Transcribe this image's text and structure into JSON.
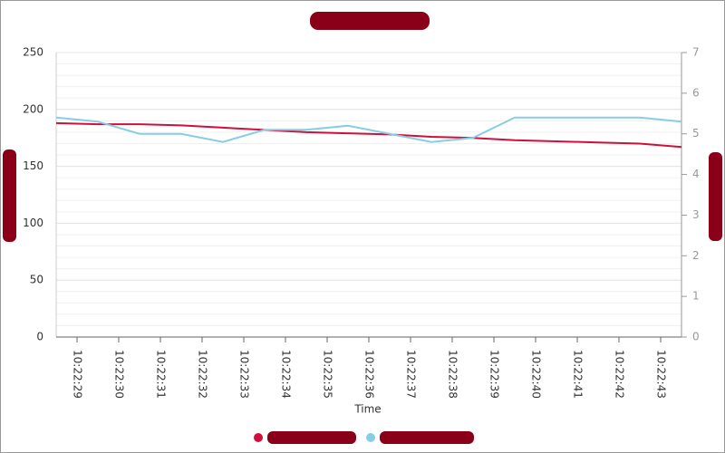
{
  "chart_data": {
    "type": "line",
    "x_label": "Time",
    "xticks": [
      "10:22:29",
      "10:22:30",
      "10:22:31",
      "10:22:32",
      "10:22:33",
      "10:22:34",
      "10:22:35",
      "10:22:36",
      "10:22:37",
      "10:22:38",
      "10:22:39",
      "10:22:40",
      "10:22:41",
      "10:22:42",
      "10:22:43"
    ],
    "ylim": [
      0,
      250
    ],
    "yticks": [
      0,
      50,
      100,
      150,
      200,
      250
    ],
    "y2lim": [
      0,
      7
    ],
    "y2ticks": [
      0,
      1,
      2,
      3,
      4,
      5,
      6,
      7
    ],
    "grid": true,
    "series": [
      {
        "color": "#d0103a",
        "values": [
          188,
          187,
          187,
          186,
          184,
          182,
          180,
          179,
          178,
          176,
          175,
          173,
          172,
          171,
          170,
          167
        ]
      },
      {
        "color": "#87cde6",
        "axis": "y2",
        "values": [
          5.4,
          5.3,
          5.0,
          5.0,
          4.8,
          5.1,
          5.1,
          5.2,
          5.0,
          4.8,
          4.9,
          5.4,
          5.4,
          5.4,
          5.4,
          5.3
        ]
      }
    ]
  }
}
